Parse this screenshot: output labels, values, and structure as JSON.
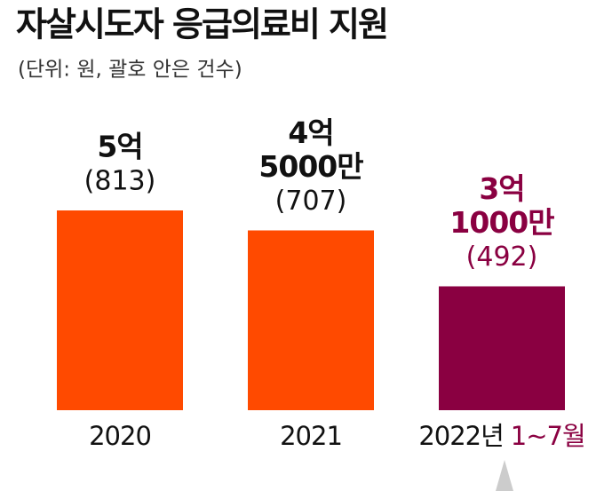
{
  "chart_data": {
    "type": "bar",
    "title": "자살시도자 응급의료비 지원",
    "subtitle": "(단위: 원, 괄호 안은 건수)",
    "categories": [
      "2020",
      "2021",
      "2022년"
    ],
    "category_note": "1~7월",
    "values": [
      500000000,
      450000000,
      310000000
    ],
    "value_labels": [
      [
        "5억"
      ],
      [
        "4억",
        "5000만"
      ],
      [
        "3억",
        "1000만"
      ]
    ],
    "counts": [
      813,
      707,
      492
    ],
    "count_labels": [
      "(813)",
      "(707)",
      "(492)"
    ],
    "colors": [
      "#ff4a00",
      "#ff4a00",
      "#8a0041"
    ]
  }
}
